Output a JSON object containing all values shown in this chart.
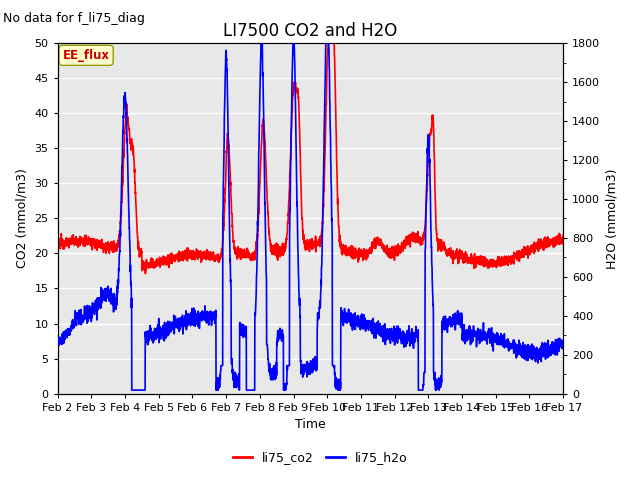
{
  "title": "LI7500 CO2 and H2O",
  "subtitle": "No data for f_li75_diag",
  "xlabel": "Time",
  "ylabel_left": "CO2 (mmol/m3)",
  "ylabel_right": "H2O (mmol/m3)",
  "ylim_left": [
    0,
    50
  ],
  "ylim_right": [
    0,
    1800
  ],
  "yticks_left": [
    0,
    5,
    10,
    15,
    20,
    25,
    30,
    35,
    40,
    45,
    50
  ],
  "yticks_right": [
    0,
    200,
    400,
    600,
    800,
    1000,
    1200,
    1400,
    1600,
    1800
  ],
  "xtick_labels": [
    "Feb 2",
    "Feb 3",
    "Feb 4",
    "Feb 5",
    "Feb 6",
    "Feb 7",
    "Feb 8",
    "Feb 9",
    "Feb 10",
    "Feb 11",
    "Feb 12",
    "Feb 13",
    "Feb 14",
    "Feb 15",
    "Feb 16",
    "Feb 17"
  ],
  "legend_label_co2": "li75_co2",
  "legend_label_h2o": "li75_h2o",
  "color_co2": "#ff0000",
  "color_h2o": "#0000ff",
  "ee_flux_label": "EE_flux",
  "ee_flux_bg": "#ffffcc",
  "ee_flux_text_color": "#cc0000",
  "plot_bg_color": "#e8e8e8",
  "grid_color": "#ffffff",
  "title_fontsize": 12,
  "subtitle_fontsize": 9,
  "axis_label_fontsize": 9,
  "tick_fontsize": 8,
  "legend_fontsize": 9,
  "linewidth_co2": 1.2,
  "linewidth_h2o": 1.2
}
